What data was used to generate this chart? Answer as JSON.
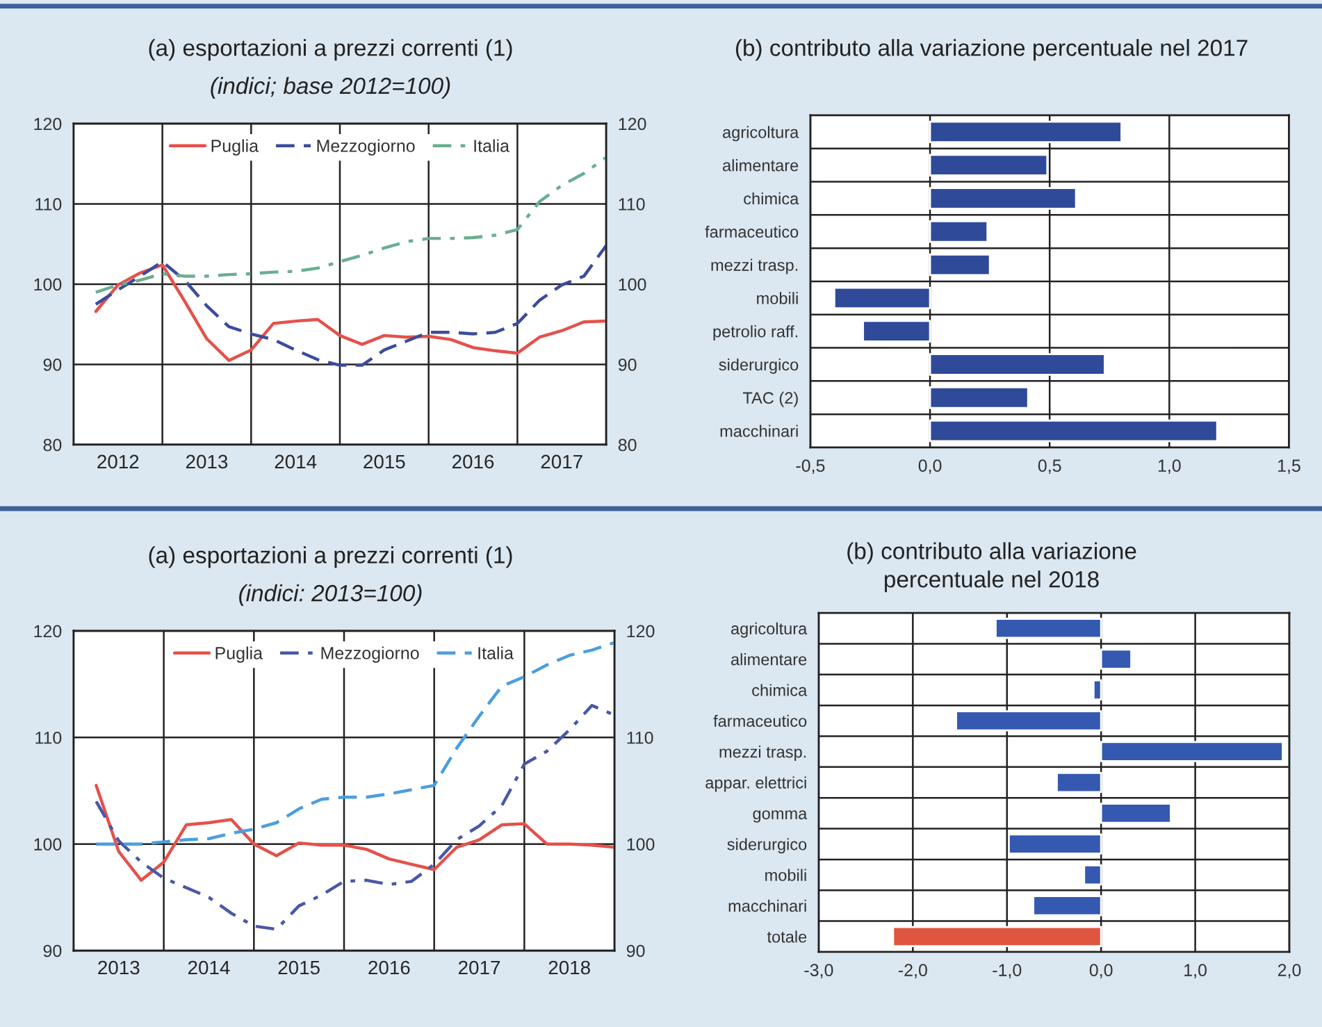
{
  "chart_data": [
    {
      "type": "line",
      "title": "(a) esportazioni a prezzi correnti (1)",
      "subtitle": "(indici; base 2012=100)",
      "x": [
        2012.25,
        2012.5,
        2012.75,
        2013.0,
        2013.25,
        2013.5,
        2013.75,
        2014.0,
        2014.25,
        2014.5,
        2014.75,
        2015.0,
        2015.25,
        2015.5,
        2015.75,
        2016.0,
        2016.25,
        2016.5,
        2016.75,
        2017.0,
        2017.25,
        2017.5,
        2017.75,
        2018.0
      ],
      "series": [
        {
          "name": "Puglia",
          "color": "#e5514b",
          "line_style": "solid",
          "values": [
            96.6,
            99.9,
            101.4,
            102.4,
            97.9,
            93.2,
            90.5,
            91.8,
            95.1,
            95.4,
            95.6,
            93.6,
            92.5,
            93.6,
            93.4,
            93.5,
            93.1,
            92.1,
            91.7,
            91.4,
            93.4,
            94.2,
            95.3,
            95.4
          ]
        },
        {
          "name": "Mezzogiorno",
          "color": "#3b4c9c",
          "line_style": "dashed",
          "values": [
            97.5,
            99.3,
            101.0,
            102.8,
            100.5,
            97.3,
            94.7,
            93.8,
            93.1,
            91.8,
            90.6,
            89.9,
            89.9,
            91.8,
            92.9,
            94.0,
            94.0,
            93.8,
            94.0,
            95.1,
            98.0,
            99.9,
            101.0,
            104.8
          ]
        },
        {
          "name": "Italia",
          "color": "#6aae92",
          "line_style": "dashdot",
          "values": [
            99.0,
            99.9,
            100.5,
            101.3,
            101.0,
            101.0,
            101.2,
            101.3,
            101.5,
            101.6,
            102.0,
            102.8,
            103.6,
            104.5,
            105.3,
            105.7,
            105.7,
            105.8,
            106.1,
            106.8,
            110.3,
            112.3,
            113.8,
            115.8
          ]
        }
      ],
      "xlim": [
        2012,
        2018
      ],
      "xticks": [
        {
          "value": 2012.5,
          "label": "2012"
        },
        {
          "value": 2013,
          "label": null
        },
        {
          "value": 2013.5,
          "label": "2013"
        },
        {
          "value": 2014,
          "label": null
        },
        {
          "value": 2014.5,
          "label": "2014"
        },
        {
          "value": 2015,
          "label": null
        },
        {
          "value": 2015.5,
          "label": "2015"
        },
        {
          "value": 2016,
          "label": null
        },
        {
          "value": 2016.5,
          "label": "2016"
        },
        {
          "value": 2017,
          "label": null
        },
        {
          "value": 2017.5,
          "label": "2017"
        }
      ],
      "ylim": [
        80,
        120
      ],
      "yticks": [
        80,
        90,
        100,
        110,
        120
      ],
      "y2lim": [
        80,
        120
      ],
      "y2ticks": [
        80,
        90,
        100,
        110,
        120
      ],
      "grid": true,
      "legend": "top"
    },
    {
      "type": "bar",
      "orientation": "horizontal",
      "title": "(b) contributo alla variazione percentuale nel 2017",
      "categories": [
        "agricoltura",
        "alimentare",
        "chimica",
        "farmaceutico",
        "mezzi trasp.",
        "mobili",
        "petrolio raff.",
        "siderurgico",
        "TAC (2)",
        "macchinari"
      ],
      "values": [
        0.8,
        0.49,
        0.61,
        0.24,
        0.25,
        -0.4,
        -0.28,
        0.73,
        0.41,
        1.2
      ],
      "color": "#2f4a98",
      "xlim": [
        -0.5,
        1.5
      ],
      "xticks": [
        {
          "value": -0.5,
          "label": "-0,5"
        },
        {
          "value": 0.0,
          "label": "0,0"
        },
        {
          "value": 0.5,
          "label": "0,5"
        },
        {
          "value": 1.0,
          "label": "1,0"
        },
        {
          "value": 1.5,
          "label": "1,5"
        }
      ],
      "grid": true
    },
    {
      "type": "line",
      "title": "(a) esportazioni a prezzi correnti (1)",
      "subtitle": "(indici: 2013=100)",
      "x": [
        2013.25,
        2013.5,
        2013.75,
        2014.0,
        2014.25,
        2014.5,
        2014.75,
        2015.0,
        2015.25,
        2015.5,
        2015.75,
        2016.0,
        2016.25,
        2016.5,
        2016.75,
        2017.0,
        2017.25,
        2017.5,
        2017.75,
        2018.0,
        2018.25,
        2018.5,
        2018.75,
        2019.0
      ],
      "series": [
        {
          "name": "Puglia",
          "color": "#e5514b",
          "line_style": "solid",
          "values": [
            105.5,
            99.3,
            96.6,
            98.3,
            101.8,
            102.0,
            102.3,
            100.0,
            98.9,
            100.1,
            99.9,
            99.9,
            99.5,
            98.6,
            98.1,
            97.6,
            99.7,
            100.4,
            101.8,
            101.9,
            100.0,
            100.0,
            99.9,
            99.7
          ]
        },
        {
          "name": "Mezzogiorno",
          "color": "#4a57a8",
          "line_style": "dashdot",
          "values": [
            104.0,
            100.3,
            98.3,
            96.8,
            95.9,
            95.0,
            93.5,
            92.3,
            92.0,
            94.2,
            95.2,
            96.5,
            96.6,
            96.2,
            96.5,
            98.1,
            100.4,
            101.7,
            103.6,
            107.5,
            108.7,
            110.7,
            113.0,
            112.1
          ]
        },
        {
          "name": "Italia",
          "color": "#4b9ede",
          "line_style": "dashed",
          "values": [
            100.0,
            100.0,
            100.0,
            100.2,
            100.4,
            100.5,
            101.0,
            101.4,
            102.0,
            103.3,
            104.2,
            104.4,
            104.4,
            104.7,
            105.1,
            105.5,
            109.0,
            112.0,
            114.8,
            115.7,
            116.8,
            117.7,
            118.2,
            118.9
          ]
        }
      ],
      "xlim": [
        2013,
        2019
      ],
      "xticks": [
        {
          "value": 2013.5,
          "label": "2013"
        },
        {
          "value": 2014,
          "label": null
        },
        {
          "value": 2014.5,
          "label": "2014"
        },
        {
          "value": 2015,
          "label": null
        },
        {
          "value": 2015.5,
          "label": "2015"
        },
        {
          "value": 2016,
          "label": null
        },
        {
          "value": 2016.5,
          "label": "2016"
        },
        {
          "value": 2017,
          "label": null
        },
        {
          "value": 2017.5,
          "label": "2017"
        },
        {
          "value": 2018,
          "label": null
        },
        {
          "value": 2018.5,
          "label": "2018"
        }
      ],
      "ylim": [
        90,
        120
      ],
      "yticks": [
        90,
        100,
        110,
        120
      ],
      "y2lim": [
        90,
        120
      ],
      "y2ticks": [
        90,
        100,
        110,
        120
      ],
      "grid": true,
      "legend": "top"
    },
    {
      "type": "bar",
      "orientation": "horizontal",
      "title": "(b) contributo alla variazione\npercentuale nel 2018",
      "categories": [
        "agricoltura",
        "alimentare",
        "chimica",
        "farmaceutico",
        "mezzi trasp.",
        "appar. elettrici",
        "gomma",
        "siderurgico",
        "mobili",
        "macchinari",
        "totale"
      ],
      "values": [
        -1.12,
        0.32,
        -0.08,
        -1.54,
        1.93,
        -0.47,
        0.74,
        -0.98,
        -0.18,
        -0.72,
        -2.21
      ],
      "colors": [
        "#3559b0",
        "#3559b0",
        "#3559b0",
        "#3559b0",
        "#3559b0",
        "#3559b0",
        "#3559b0",
        "#3559b0",
        "#3559b0",
        "#3559b0",
        "#e0553f"
      ],
      "xlim": [
        -3.0,
        2.0
      ],
      "xticks": [
        {
          "value": -3.0,
          "label": "-3,0"
        },
        {
          "value": -2.0,
          "label": "-2,0"
        },
        {
          "value": -1.0,
          "label": "-1,0"
        },
        {
          "value": 0.0,
          "label": "0,0"
        },
        {
          "value": 1.0,
          "label": "1,0"
        },
        {
          "value": 2.0,
          "label": "2,0"
        }
      ],
      "grid": true
    }
  ]
}
